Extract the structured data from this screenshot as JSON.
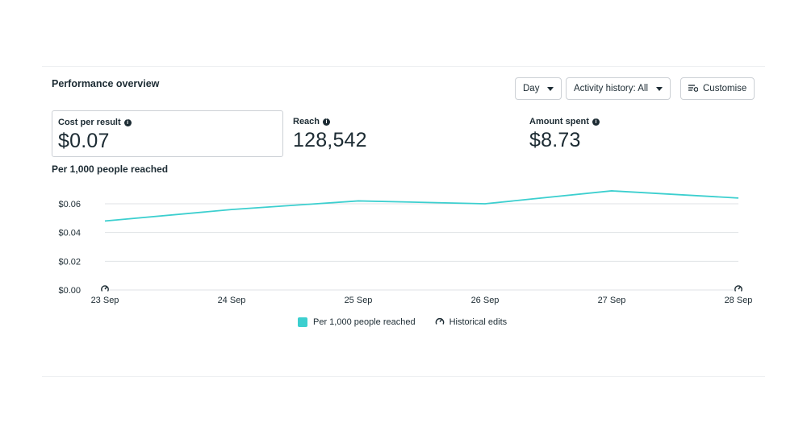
{
  "panel": {
    "title": "Performance overview"
  },
  "toolbar": {
    "day_label": "Day",
    "activity_label": "Activity history: All",
    "customise_label": "Customise"
  },
  "metrics": [
    {
      "label": "Cost per result",
      "value": "$0.07",
      "selected": true
    },
    {
      "label": "Reach",
      "value": "128,542",
      "selected": false
    },
    {
      "label": "Amount spent",
      "value": "$8.73",
      "selected": false
    }
  ],
  "chart_title": "Per 1,000 people reached",
  "legend": {
    "series_label": "Per 1,000 people reached",
    "edits_label": "Historical edits"
  },
  "colors": {
    "series": "#3ccfcf",
    "grid": "#dfe2e5",
    "text": "#1c2b33"
  },
  "chart_data": {
    "type": "line",
    "categories": [
      "23 Sep",
      "24 Sep",
      "25 Sep",
      "26 Sep",
      "27 Sep",
      "28 Sep"
    ],
    "series": [
      {
        "name": "Per 1,000 people reached",
        "values": [
          0.048,
          0.056,
          0.062,
          0.06,
          0.069,
          0.064
        ]
      }
    ],
    "yticks": [
      "$0.00",
      "$0.02",
      "$0.04",
      "$0.06"
    ],
    "ylim": [
      0,
      0.06
    ],
    "historical_edits_at": [
      "23 Sep",
      "28 Sep"
    ],
    "grid": true,
    "legend_position": "bottom"
  }
}
